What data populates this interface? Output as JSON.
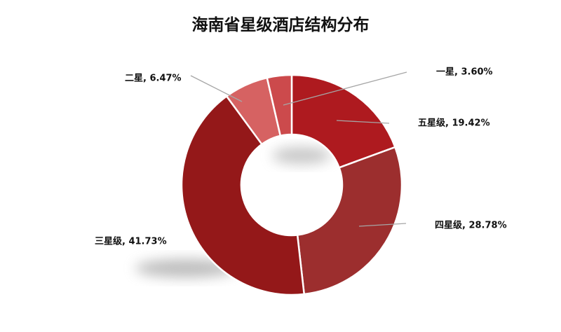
{
  "chart_data": {
    "type": "pie",
    "donut": true,
    "title": "海南省星级酒店结构分布",
    "categories": [
      "五星级",
      "四星级",
      "三星级",
      "二星",
      "一星"
    ],
    "values": [
      19.42,
      28.78,
      41.73,
      6.47,
      3.6
    ],
    "data_labels": [
      "五星级, 19.42%",
      "四星级, 28.78%",
      "三星级, 41.73%",
      "二星, 6.47%",
      "一星, 3.60%"
    ],
    "colors": [
      "#AE1A1F",
      "#9C2E2E",
      "#941819",
      "#D66262",
      "#CC4A4C"
    ],
    "start_angle_deg": 0,
    "direction": "clockwise",
    "legend": "none"
  }
}
